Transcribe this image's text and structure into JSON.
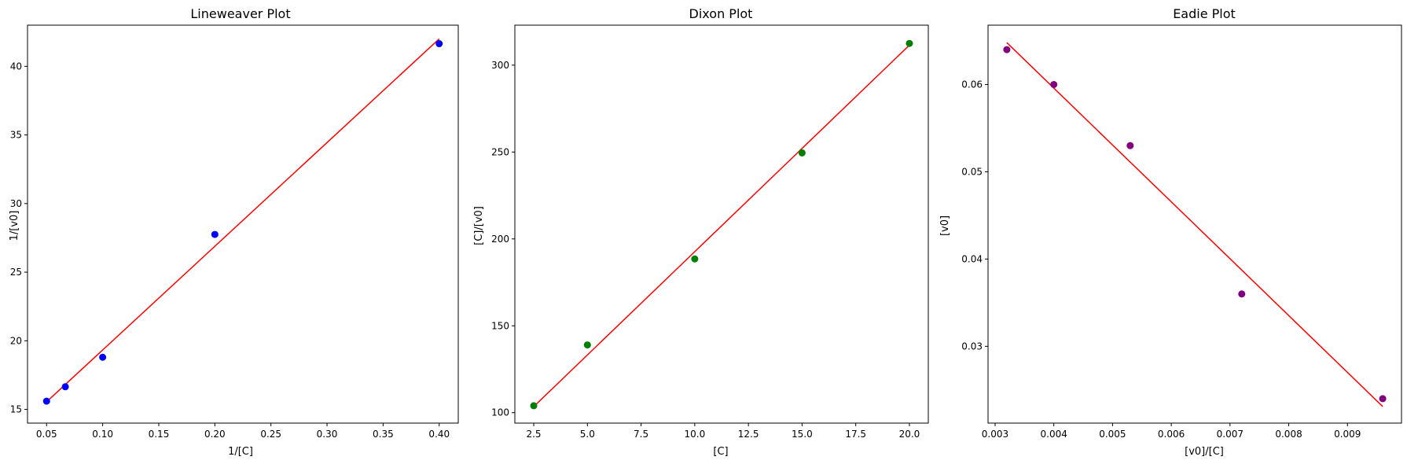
{
  "chart_data": [
    {
      "type": "scatter",
      "title": "Lineweaver Plot",
      "xlabel": "1/[C]",
      "ylabel": "1/[v0]",
      "xlim": [
        0.033,
        0.417
      ],
      "ylim": [
        14.0,
        43.0
      ],
      "xticks": [
        "0.05",
        "0.10",
        "0.15",
        "0.20",
        "0.25",
        "0.30",
        "0.35",
        "0.40"
      ],
      "xtick_values": [
        0.05,
        0.1,
        0.15,
        0.2,
        0.25,
        0.3,
        0.35,
        0.4
      ],
      "yticks": [
        "15",
        "20",
        "25",
        "30",
        "35",
        "40"
      ],
      "ytick_values": [
        15,
        20,
        25,
        30,
        35,
        40
      ],
      "grid": false,
      "points": {
        "x": [
          0.05,
          0.0667,
          0.1,
          0.2,
          0.4
        ],
        "y": [
          15.6,
          16.65,
          18.8,
          27.75,
          41.65
        ],
        "color": "#0000ff"
      },
      "fit_line": {
        "x": [
          0.05,
          0.4
        ],
        "y": [
          15.55,
          42.0
        ],
        "color": "#ff0000"
      }
    },
    {
      "type": "scatter",
      "title": "Dixon Plot",
      "xlabel": "[C]",
      "ylabel": "[C]/[v0]",
      "xlim": [
        1.62,
        20.88
      ],
      "ylim": [
        94.0,
        323.0
      ],
      "xticks": [
        "2.5",
        "5.0",
        "7.5",
        "10.0",
        "12.5",
        "15.0",
        "17.5",
        "20.0"
      ],
      "xtick_values": [
        2.5,
        5.0,
        7.5,
        10.0,
        12.5,
        15.0,
        17.5,
        20.0
      ],
      "yticks": [
        "100",
        "150",
        "200",
        "250",
        "300"
      ],
      "ytick_values": [
        100,
        150,
        200,
        250,
        300
      ],
      "grid": false,
      "points": {
        "x": [
          2.5,
          5.0,
          10.0,
          15.0,
          20.0
        ],
        "y": [
          104,
          139,
          188.5,
          249.5,
          312.5
        ],
        "color": "#008000"
      },
      "fit_line": {
        "x": [
          2.5,
          20.0
        ],
        "y": [
          103.5,
          311.5
        ],
        "color": "#ff0000"
      }
    },
    {
      "type": "scatter",
      "title": "Eadie Plot",
      "xlabel": "[v0]/[C]",
      "ylabel": "[v0]",
      "xlim": [
        0.00288,
        0.00992
      ],
      "ylim": [
        0.0212,
        0.0668
      ],
      "xticks": [
        "0.003",
        "0.004",
        "0.005",
        "0.006",
        "0.007",
        "0.008",
        "0.009"
      ],
      "xtick_values": [
        0.003,
        0.004,
        0.005,
        0.006,
        0.007,
        0.008,
        0.009
      ],
      "yticks": [
        "0.03",
        "0.04",
        "0.05",
        "0.06"
      ],
      "ytick_values": [
        0.03,
        0.04,
        0.05,
        0.06
      ],
      "grid": false,
      "points": {
        "x": [
          0.0032,
          0.004,
          0.0053,
          0.0072,
          0.0096
        ],
        "y": [
          0.064,
          0.06,
          0.053,
          0.036,
          0.024
        ],
        "color": "#800080"
      },
      "fit_line": {
        "x": [
          0.0032,
          0.0096
        ],
        "y": [
          0.0648,
          0.0231
        ],
        "color": "#ff0000"
      }
    }
  ]
}
